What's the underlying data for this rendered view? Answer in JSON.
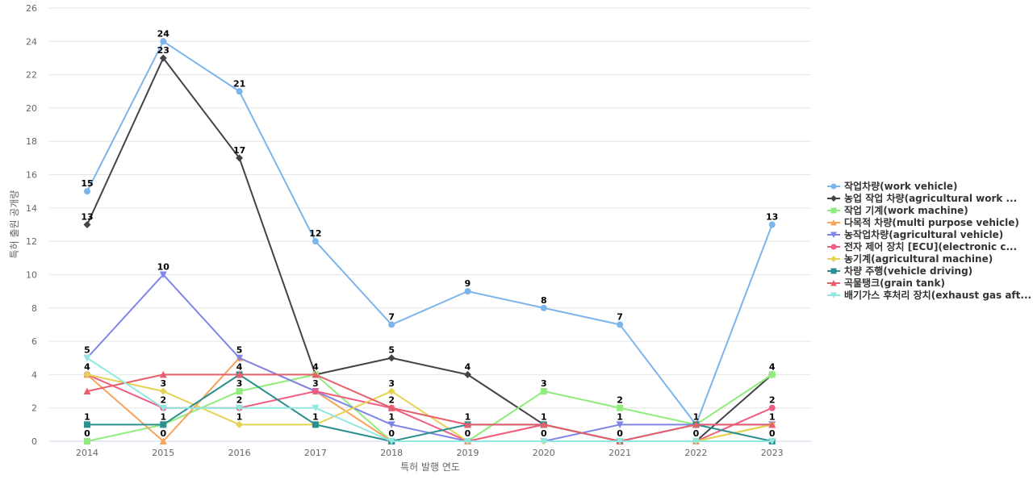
{
  "chart_data": {
    "type": "line",
    "x": [
      "2014",
      "2015",
      "2016",
      "2017",
      "2018",
      "2019",
      "2020",
      "2021",
      "2022",
      "2023"
    ],
    "xlabel": "특허 발행 연도",
    "ylabel": "특허 출원 공개량",
    "ylim": [
      0,
      26
    ],
    "ytick_step": 2,
    "grid": true,
    "legend_position": "right",
    "series": [
      {
        "name": "작업차량(work vehicle)",
        "color": "#7cb5ec",
        "marker": "circle",
        "values": [
          15,
          24,
          21,
          12,
          7,
          9,
          8,
          7,
          1,
          13
        ],
        "labels": true
      },
      {
        "name": "농업 작업 차량(agricultural work ...",
        "color": "#434348",
        "marker": "diamond",
        "values": [
          13,
          23,
          17,
          4,
          5,
          4,
          1,
          0,
          0,
          4
        ],
        "labels": true
      },
      {
        "name": "작업 기계(work machine)",
        "color": "#90ed7d",
        "marker": "square",
        "values": [
          0,
          1,
          3,
          4,
          0,
          0,
          3,
          2,
          1,
          4
        ],
        "labels": true
      },
      {
        "name": "다목적 차량(multi purpose vehicle)",
        "color": "#f7a35c",
        "marker": "triangle",
        "values": [
          4,
          0,
          5,
          3,
          0,
          0,
          1,
          0,
          0,
          1
        ],
        "labels": true
      },
      {
        "name": "농작업차량(agricultural vehicle)",
        "color": "#8085e9",
        "marker": "triangle-down",
        "values": [
          5,
          10,
          5,
          3,
          1,
          0,
          0,
          1,
          1,
          1
        ],
        "labels": true
      },
      {
        "name": "전자 제어 장치 [ECU](electronic c...",
        "color": "#f15c80",
        "marker": "circle",
        "values": [
          4,
          2,
          2,
          3,
          2,
          0,
          1,
          0,
          0,
          2
        ],
        "labels": true
      },
      {
        "name": "농기계(agricultural machine)",
        "color": "#e4d354",
        "marker": "diamond",
        "values": [
          4,
          3,
          1,
          1,
          3,
          0,
          0,
          0,
          0,
          1
        ],
        "labels": true
      },
      {
        "name": "차량 주행(vehicle driving)",
        "color": "#2b908f",
        "marker": "square",
        "values": [
          1,
          1,
          4,
          1,
          0,
          1,
          1,
          0,
          1,
          0
        ],
        "labels": true
      },
      {
        "name": "곡물탱크(grain tank)",
        "color": "#e75f6c",
        "marker": "triangle",
        "values": [
          3,
          4,
          4,
          4,
          2,
          1,
          1,
          0,
          1,
          1
        ],
        "labels": false
      },
      {
        "name": "배기가스 후처리 장치(exhaust gas aft...",
        "color": "#91e8e1",
        "marker": "triangle-down",
        "values": [
          5,
          2,
          2,
          2,
          0,
          0,
          0,
          0,
          0,
          0
        ],
        "labels": false
      }
    ]
  }
}
